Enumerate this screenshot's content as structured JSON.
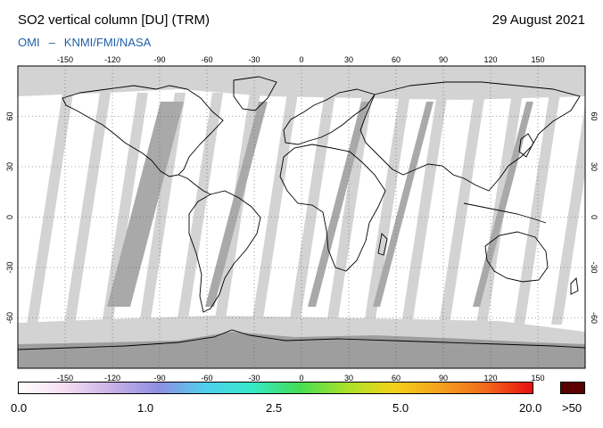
{
  "header": {
    "title": "SO2 vertical column [DU] (TRM)",
    "date": "29 August 2021",
    "credit_left": "OMI",
    "credit_dash": "–",
    "credit_right": "KNMI/FMI/NASA"
  },
  "map": {
    "lon_ticks": [
      "-150",
      "-120",
      "-90",
      "-60",
      "-30",
      "0",
      "30",
      "60",
      "90",
      "120",
      "150"
    ],
    "lat_ticks": [
      "60",
      "30",
      "0",
      "-30",
      "-60"
    ],
    "colors": {
      "no_data": "#d3d3d3",
      "night_band": "#a9a9a9",
      "polar_night": "#9e9e9e",
      "coastline": "#000000",
      "gridline": "#555555"
    }
  },
  "colorbar": {
    "labels": [
      "0.0",
      "1.0",
      "2.5",
      "5.0",
      "20.0"
    ],
    "overflow_label": ">50",
    "overflow_color": "#5a0000",
    "gradient_stops": [
      "#ffffff",
      "#f3ddf2",
      "#c9b1e8",
      "#8f8ee3",
      "#4fd0ef",
      "#35e8c8",
      "#45dd55",
      "#a7e22a",
      "#f3d21a",
      "#f5a21e",
      "#f26a1c",
      "#e60f0f"
    ]
  }
}
